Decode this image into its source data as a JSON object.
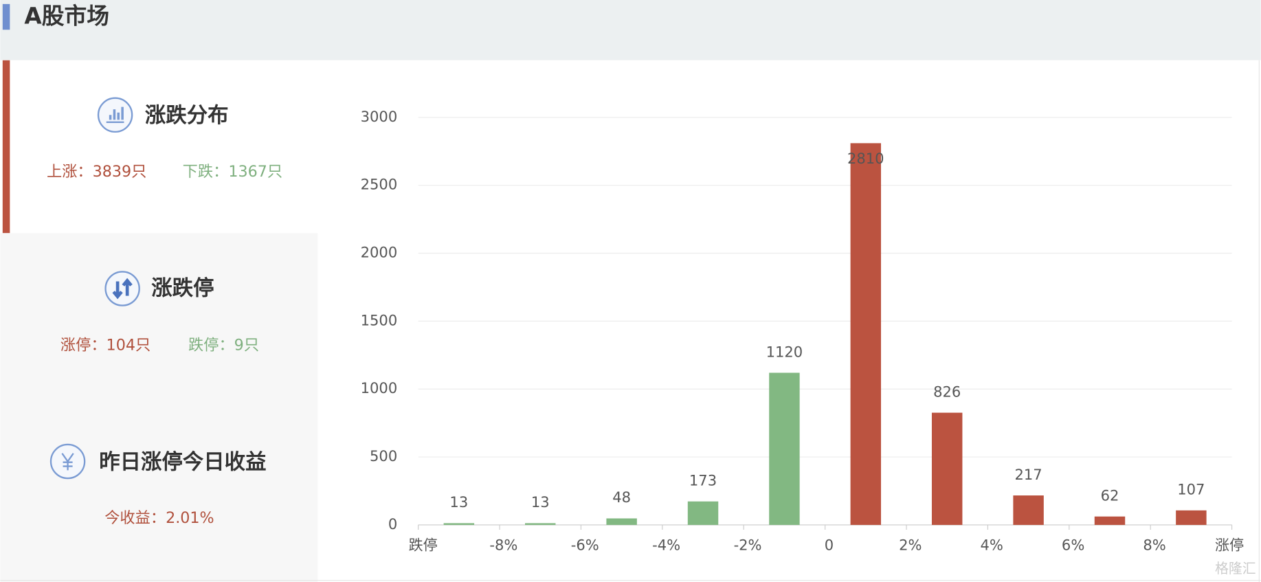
{
  "header": {
    "title": "A股市场"
  },
  "panels": [
    {
      "title": "涨跌分布",
      "stats": [
        "上涨：3839只",
        "下跌：1367只"
      ]
    },
    {
      "title": "涨跌停",
      "stats": [
        "涨停：104只",
        "跌停：9只"
      ]
    },
    {
      "title": "昨日涨停今日收益",
      "stats": [
        "今收益：2.01%"
      ]
    }
  ],
  "chart_data": {
    "type": "bar",
    "xtick_labels": [
      "跌停",
      "-8%",
      "-6%",
      "-4%",
      "-2%",
      "0",
      "2%",
      "4%",
      "6%",
      "8%",
      "涨停"
    ],
    "values": [
      13,
      13,
      48,
      173,
      1120,
      2810,
      826,
      217,
      62,
      107
    ],
    "colors": [
      "#82b882",
      "#82b882",
      "#82b882",
      "#82b882",
      "#82b882",
      "#bb5340",
      "#bb5340",
      "#bb5340",
      "#bb5340",
      "#bb5340"
    ],
    "ylim": [
      0,
      3000
    ],
    "yticks": [
      0,
      500,
      1000,
      1500,
      2000,
      2500,
      3000
    ],
    "grid": true
  },
  "watermark": "格隆汇"
}
